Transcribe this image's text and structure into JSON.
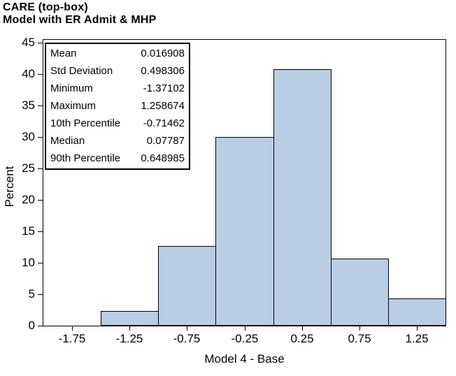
{
  "header": {
    "title_line1": "CARE (top-box)",
    "title_line2": "Model with ER Admit & MHP"
  },
  "chart_data": {
    "type": "bar",
    "subtype": "histogram",
    "title": "CARE (top-box)",
    "subtitle": "Model with ER Admit & MHP",
    "xlabel": "Model 4 - Base",
    "ylabel": "Percent",
    "ylim": [
      0,
      45
    ],
    "ytick_step": 5,
    "xlim": [
      -2.0,
      1.5
    ],
    "grid": false,
    "legend": "none",
    "bar_fill": "#b9cde5",
    "bar_border": "#000000",
    "xticks": [
      {
        "value": -1.75,
        "label": "-1.75"
      },
      {
        "value": -1.25,
        "label": "-1.25"
      },
      {
        "value": -0.75,
        "label": "-0.75"
      },
      {
        "value": -0.25,
        "label": "-0.25"
      },
      {
        "value": 0.25,
        "label": "0.25"
      },
      {
        "value": 0.75,
        "label": "0.75"
      },
      {
        "value": 1.25,
        "label": "1.25"
      }
    ],
    "bins": [
      {
        "x0": -1.5,
        "x1": -1.0,
        "midpoint": -1.25,
        "percent": 2.3
      },
      {
        "x0": -1.0,
        "x1": -0.5,
        "midpoint": -0.75,
        "percent": 12.7
      },
      {
        "x0": -0.5,
        "x1": 0.0,
        "midpoint": -0.25,
        "percent": 30.0
      },
      {
        "x0": 0.0,
        "x1": 0.5,
        "midpoint": 0.25,
        "percent": 40.8
      },
      {
        "x0": 0.5,
        "x1": 1.0,
        "midpoint": 0.75,
        "percent": 10.7
      },
      {
        "x0": 1.0,
        "x1": 1.5,
        "midpoint": 1.25,
        "percent": 4.3
      }
    ]
  },
  "stats_box": {
    "rows": [
      {
        "label": "Mean",
        "value": "0.016908"
      },
      {
        "label": "Std Deviation",
        "value": "0.498306"
      },
      {
        "label": "Minimum",
        "value": "-1.37102"
      },
      {
        "label": "Maximum",
        "value": "1.258674"
      },
      {
        "label": "10th Percentile",
        "value": "-0.71462"
      },
      {
        "label": "Median",
        "value": "0.07787"
      },
      {
        "label": "90th Percentile",
        "value": "0.648985"
      }
    ]
  }
}
